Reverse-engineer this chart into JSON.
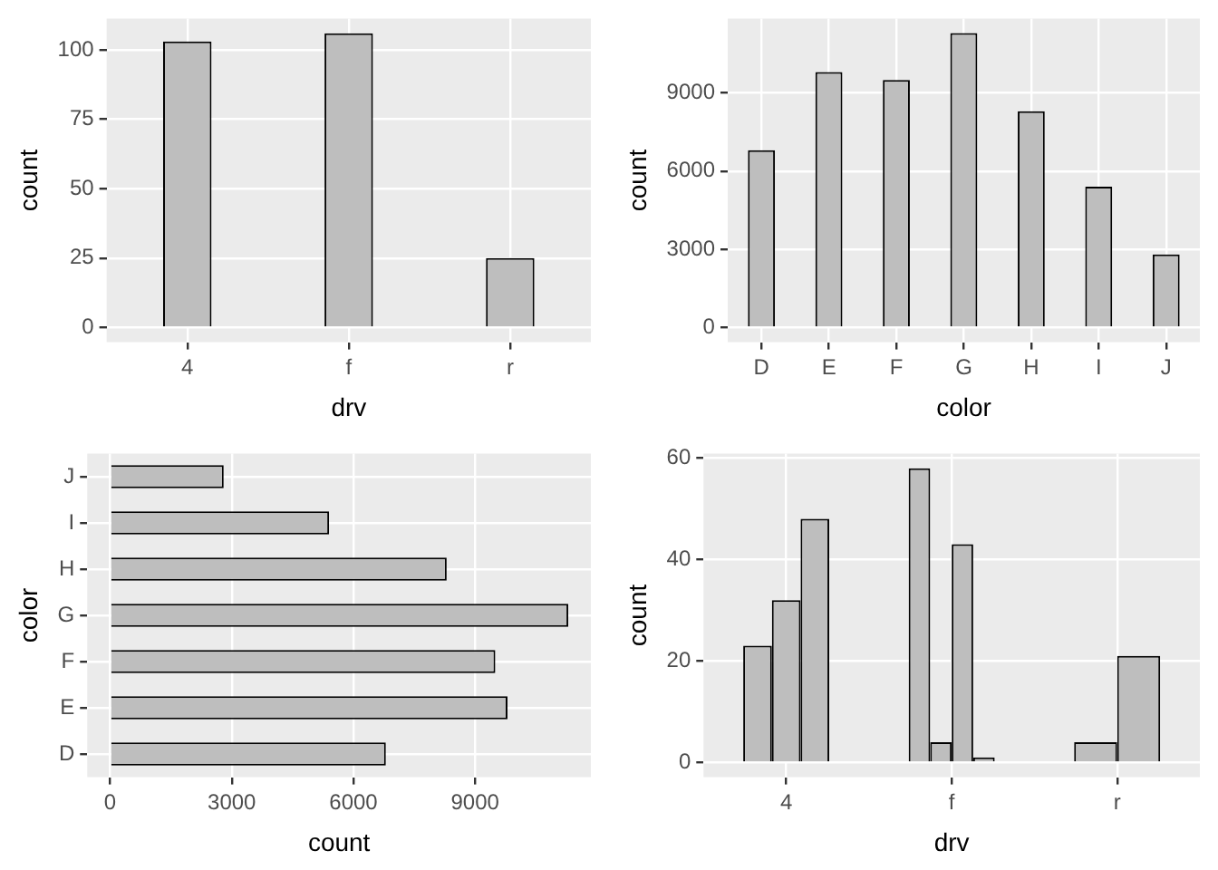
{
  "chart_data": [
    {
      "type": "bar",
      "xlabel": "drv",
      "ylabel": "count",
      "categories": [
        "4",
        "f",
        "r"
      ],
      "values": [
        103,
        106,
        25
      ],
      "color": "#bebebe",
      "ylim": [
        -5.3,
        111.3
      ],
      "yticks": [
        0,
        25,
        50,
        75,
        100
      ],
      "grid": true
    },
    {
      "type": "bar",
      "xlabel": "color",
      "ylabel": "count",
      "categories": [
        "D",
        "E",
        "F",
        "G",
        "H",
        "I",
        "J"
      ],
      "values": [
        6800,
        9800,
        9500,
        11300,
        8300,
        5400,
        2800
      ],
      "color": "#bebebe",
      "ylim": [
        -565,
        11857
      ],
      "yticks": [
        0,
        3000,
        6000,
        9000
      ],
      "grid": true
    },
    {
      "type": "bar",
      "orientation": "horizontal",
      "xlabel": "count",
      "ylabel": "color",
      "categories": [
        "J",
        "I",
        "H",
        "G",
        "F",
        "E",
        "D"
      ],
      "values": [
        2800,
        5400,
        8300,
        11300,
        9500,
        9800,
        6800
      ],
      "color": "#bebebe",
      "xlim": [
        -565,
        11857
      ],
      "xticks": [
        0,
        3000,
        6000,
        9000
      ],
      "grid": true
    },
    {
      "type": "bar",
      "xlabel": "drv",
      "ylabel": "count",
      "categories": [
        "4",
        "f",
        "r"
      ],
      "series": [
        {
          "color": "#bebebe",
          "values": [
            23,
            58,
            null
          ]
        },
        {
          "color": "#bebebe",
          "values": [
            null,
            4,
            null
          ]
        },
        {
          "color": "#bebebe",
          "values": [
            32,
            43,
            4
          ]
        },
        {
          "color": "#bebebe",
          "values": [
            48,
            1,
            21
          ]
        }
      ],
      "ylim": [
        -2.9,
        60.9
      ],
      "yticks": [
        0,
        20,
        40,
        60
      ],
      "grid": true
    }
  ]
}
